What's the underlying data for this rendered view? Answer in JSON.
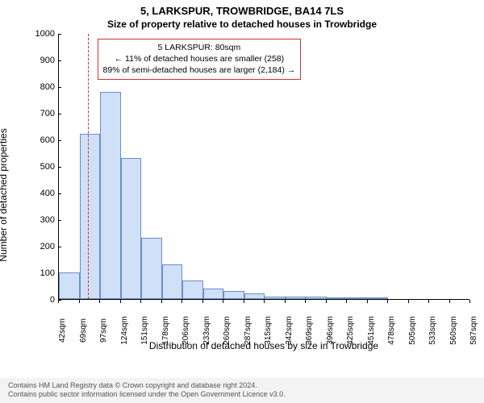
{
  "title_main": "5, LARKSPUR, TROWBRIDGE, BA14 7LS",
  "title_sub": "Size of property relative to detached houses in Trowbridge",
  "chart": {
    "type": "histogram",
    "ylabel": "Number of detached properties",
    "xlabel": "Distribution of detached houses by size in Trowbridge",
    "ylim": [
      0,
      1000
    ],
    "ytick_step": 100,
    "yticks": [
      0,
      100,
      200,
      300,
      400,
      500,
      600,
      700,
      800,
      900,
      1000
    ],
    "xticks": [
      "42sqm",
      "69sqm",
      "97sqm",
      "124sqm",
      "151sqm",
      "178sqm",
      "206sqm",
      "233sqm",
      "260sqm",
      "287sqm",
      "315sqm",
      "342sqm",
      "369sqm",
      "396sqm",
      "425sqm",
      "451sqm",
      "478sqm",
      "505sqm",
      "533sqm",
      "560sqm",
      "587sqm"
    ],
    "bar_values": [
      100,
      620,
      780,
      530,
      230,
      130,
      70,
      40,
      30,
      20,
      10,
      10,
      10,
      5,
      5,
      5,
      0,
      0,
      0,
      0
    ],
    "bar_fill": "#cfe0f7",
    "bar_stroke": "#6b8fc7",
    "grid_color": "#e0e0e0",
    "background_color": "#ffffff",
    "axis_color": "#000000",
    "label_fontsize": 12,
    "tick_fontsize": 10,
    "ref_line": {
      "value_sqm": 80,
      "color": "#d03030"
    },
    "annotation": {
      "border_color": "#d03030",
      "lines": [
        "5 LARKSPUR: 80sqm",
        "← 11% of detached houses are smaller (258)",
        "89% of semi-detached houses are larger (2,184) →"
      ]
    }
  },
  "footer": {
    "line1": "Contains HM Land Registry data © Crown copyright and database right 2024.",
    "line2": "Contains public sector information licensed under the Open Government Licence v3.0.",
    "bg": "#f3f3f3",
    "color": "#555555"
  }
}
